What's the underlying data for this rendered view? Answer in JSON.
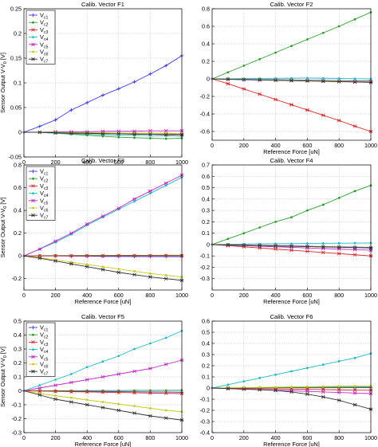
{
  "chart_data": [
    {
      "type": "line",
      "title": "Calib. Vector F1",
      "xlabel": "Reference Force [uN]",
      "ylabel": "Sensor Output V-V",
      "ylabel_sub": "0",
      "ylabel_unit": " [V]",
      "x": [
        0,
        100,
        200,
        300,
        400,
        500,
        600,
        700,
        800,
        900,
        1000
      ],
      "xlim": [
        0,
        1000
      ],
      "xticks": [
        0,
        200,
        400,
        600,
        800,
        1000
      ],
      "ylim": [
        -0.05,
        0.25
      ],
      "yticks": [
        -0.05,
        0,
        0.05,
        0.1,
        0.15,
        0.2,
        0.25
      ],
      "grid": true,
      "legend_loc": "top-left",
      "series": [
        {
          "name": "c1",
          "color": "#3b3bd6",
          "marker": "plus",
          "values": [
            0,
            0.012,
            0.025,
            0.045,
            0.06,
            0.075,
            0.088,
            0.102,
            0.118,
            0.135,
            0.155
          ]
        },
        {
          "name": "c2",
          "color": "#2e9a2e",
          "marker": "dot",
          "values": [
            0,
            0,
            -0.002,
            -0.004,
            -0.006,
            -0.008,
            -0.01,
            -0.011,
            -0.012,
            -0.013,
            -0.012
          ]
        },
        {
          "name": "c3",
          "color": "#d62828",
          "marker": "star",
          "values": [
            0,
            0,
            -0.001,
            -0.001,
            -0.002,
            -0.002,
            -0.003,
            -0.003,
            -0.004,
            -0.004,
            -0.004
          ]
        },
        {
          "name": "c4",
          "color": "#22b8c0",
          "marker": "dot",
          "values": [
            0,
            0,
            -0.002,
            -0.003,
            -0.004,
            -0.005,
            -0.006,
            -0.006,
            -0.007,
            -0.007,
            -0.008
          ]
        },
        {
          "name": "c5",
          "color": "#c02cc0",
          "marker": "star",
          "values": [
            0,
            0,
            0.001,
            0.001,
            0.001,
            0.002,
            0.002,
            0.002,
            0.003,
            0.003,
            0.003
          ]
        },
        {
          "name": "c6",
          "color": "#c8c81e",
          "marker": "dot",
          "values": [
            0,
            0,
            0,
            -0.001,
            -0.001,
            -0.001,
            -0.002,
            -0.002,
            -0.002,
            -0.002,
            -0.003
          ]
        },
        {
          "name": "c7",
          "color": "#333333",
          "marker": "star",
          "values": [
            0,
            0,
            -0.001,
            -0.002,
            -0.002,
            -0.003,
            -0.003,
            -0.004,
            -0.004,
            -0.005,
            -0.005
          ]
        }
      ]
    },
    {
      "type": "line",
      "title": "Calib. Vector F2",
      "xlabel": "Reference Force [uN]",
      "ylabel": "",
      "x": [
        0,
        100,
        200,
        300,
        400,
        500,
        600,
        700,
        800,
        900,
        1000
      ],
      "xlim": [
        0,
        1000
      ],
      "xticks": [
        0,
        200,
        400,
        600,
        800,
        1000
      ],
      "xtick_labels": [
        "0",
        "200",
        "400",
        "600",
        "800",
        "1000"
      ],
      "ylim": [
        -0.7,
        0.8
      ],
      "yticks": [
        -0.6,
        -0.4,
        -0.2,
        0,
        0.2,
        0.4,
        0.6,
        0.8
      ],
      "grid": true,
      "series": [
        {
          "color": "#3b3bd6",
          "marker": "plus",
          "values": [
            0,
            0,
            -0.005,
            -0.008,
            -0.01,
            -0.012,
            -0.015,
            -0.018,
            -0.02,
            -0.022,
            -0.025
          ]
        },
        {
          "color": "#2e9a2e",
          "marker": "dot",
          "values": [
            0,
            0.075,
            0.15,
            0.225,
            0.3,
            0.375,
            0.45,
            0.525,
            0.6,
            0.68,
            0.76
          ]
        },
        {
          "color": "#d62828",
          "marker": "star",
          "values": [
            0,
            -0.055,
            -0.115,
            -0.175,
            -0.235,
            -0.295,
            -0.355,
            -0.415,
            -0.475,
            -0.54,
            -0.6
          ]
        },
        {
          "color": "#22b8c0",
          "marker": "dot",
          "values": [
            0,
            0.002,
            0.003,
            0.005,
            0.006,
            0.008,
            0.01,
            0.008,
            0.005,
            0.002,
            0
          ]
        },
        {
          "color": "#c02cc0",
          "marker": "star",
          "values": [
            0,
            -0.005,
            -0.01,
            -0.012,
            -0.015,
            -0.018,
            -0.02,
            -0.022,
            -0.025,
            -0.028,
            -0.03
          ]
        },
        {
          "color": "#c8c81e",
          "marker": "dot",
          "values": [
            0,
            -0.003,
            -0.006,
            -0.01,
            -0.013,
            -0.016,
            -0.02,
            -0.023,
            -0.026,
            -0.03,
            -0.033
          ]
        },
        {
          "color": "#333333",
          "marker": "star",
          "values": [
            0,
            -0.004,
            -0.008,
            -0.012,
            -0.016,
            -0.02,
            -0.024,
            -0.028,
            -0.032,
            -0.036,
            -0.04
          ]
        }
      ]
    },
    {
      "type": "line",
      "title": "Calib. Vector F3",
      "xlabel": "Reference Force [uN]",
      "ylabel": "Sensor Output V-V",
      "ylabel_sub": "0",
      "ylabel_unit": " [V]",
      "x": [
        0,
        100,
        200,
        300,
        400,
        500,
        600,
        700,
        800,
        900,
        1000
      ],
      "xlim": [
        0,
        1000
      ],
      "xticks": [
        0,
        200,
        400,
        600,
        800,
        1000
      ],
      "ylim": [
        -0.3,
        0.8
      ],
      "yticks": [
        -0.2,
        0,
        0.2,
        0.4,
        0.6,
        0.8
      ],
      "grid": true,
      "legend_loc": "top-left",
      "series": [
        {
          "name": "c1",
          "color": "#3b3bd6",
          "marker": "plus",
          "values": [
            0,
            0,
            0,
            -0.002,
            -0.003,
            -0.004,
            -0.005,
            -0.005,
            -0.006,
            -0.006,
            -0.007
          ]
        },
        {
          "name": "c2",
          "color": "#2e9a2e",
          "marker": "dot",
          "values": [
            0,
            0.002,
            0.003,
            0.003,
            0.004,
            0.004,
            0.005,
            0.005,
            0.005,
            0.006,
            0.006
          ]
        },
        {
          "name": "c3",
          "color": "#d62828",
          "marker": "star",
          "values": [
            0,
            0,
            0.001,
            0.001,
            0.001,
            0.001,
            0.002,
            0.002,
            0.002,
            0.002,
            0.002
          ]
        },
        {
          "name": "c4",
          "color": "#22b8c0",
          "marker": "dot",
          "values": [
            0,
            0.06,
            0.12,
            0.19,
            0.27,
            0.34,
            0.41,
            0.48,
            0.55,
            0.62,
            0.69
          ]
        },
        {
          "name": "c5",
          "color": "#c02cc0",
          "marker": "star",
          "values": [
            0,
            0.06,
            0.13,
            0.2,
            0.28,
            0.35,
            0.42,
            0.5,
            0.57,
            0.64,
            0.71
          ]
        },
        {
          "name": "c6",
          "color": "#c8c81e",
          "marker": "dot",
          "values": [
            0,
            -0.015,
            -0.035,
            -0.055,
            -0.075,
            -0.095,
            -0.115,
            -0.135,
            -0.155,
            -0.17,
            -0.185
          ]
        },
        {
          "name": "c7",
          "color": "#333333",
          "marker": "star",
          "values": [
            0,
            -0.02,
            -0.045,
            -0.07,
            -0.095,
            -0.12,
            -0.145,
            -0.165,
            -0.185,
            -0.2,
            -0.215
          ]
        }
      ]
    },
    {
      "type": "line",
      "title": "Calib. Vector F4",
      "xlabel": "Reference Force [uN]",
      "ylabel": "",
      "x": [
        0,
        100,
        200,
        300,
        400,
        500,
        600,
        700,
        800,
        900,
        1000
      ],
      "xlim": [
        0,
        1000
      ],
      "xticks": [
        0,
        200,
        400,
        600,
        800,
        1000
      ],
      "xtick_labels": [
        "0",
        "200",
        "400",
        "600",
        "800",
        "1000"
      ],
      "ylim": [
        -0.4,
        0.7
      ],
      "yticks": [
        -0.3,
        -0.2,
        -0.1,
        0,
        0.1,
        0.2,
        0.3,
        0.4,
        0.5,
        0.6,
        0.7
      ],
      "grid": true,
      "series": [
        {
          "color": "#3b3bd6",
          "marker": "plus",
          "values": [
            0,
            -0.002,
            -0.005,
            -0.008,
            -0.01,
            -0.012,
            -0.015,
            -0.018,
            -0.02,
            -0.022,
            -0.025
          ]
        },
        {
          "color": "#2e9a2e",
          "marker": "dot",
          "values": [
            0,
            0.05,
            0.1,
            0.15,
            0.2,
            0.24,
            0.3,
            0.35,
            0.41,
            0.47,
            0.52
          ]
        },
        {
          "color": "#d62828",
          "marker": "star",
          "values": [
            0,
            -0.01,
            -0.02,
            -0.03,
            -0.04,
            -0.05,
            -0.06,
            -0.07,
            -0.08,
            -0.09,
            -0.1
          ]
        },
        {
          "color": "#22b8c0",
          "marker": "dot",
          "values": [
            0,
            0.002,
            0.004,
            0.006,
            0.007,
            0.008,
            0.01,
            0.011,
            0.012,
            0.013,
            0.014
          ]
        },
        {
          "color": "#c02cc0",
          "marker": "star",
          "values": [
            0,
            -0.005,
            -0.01,
            -0.015,
            -0.02,
            -0.025,
            -0.03,
            -0.035,
            -0.04,
            -0.045,
            -0.05
          ]
        },
        {
          "color": "#c8c81e",
          "marker": "dot",
          "values": [
            0,
            -0.003,
            -0.006,
            -0.01,
            -0.012,
            -0.015,
            -0.018,
            -0.02,
            -0.022,
            -0.025,
            -0.028
          ]
        },
        {
          "color": "#333333",
          "marker": "star",
          "values": [
            0,
            -0.003,
            -0.006,
            -0.009,
            -0.012,
            -0.015,
            -0.018,
            -0.021,
            -0.024,
            -0.027,
            -0.03
          ]
        }
      ]
    },
    {
      "type": "line",
      "title": "Calib. Vector F5",
      "xlabel": "Reference Force [uN]",
      "ylabel": "Sensor Output V-V",
      "ylabel_sub": "0",
      "ylabel_unit": " [V]",
      "x": [
        0,
        100,
        200,
        300,
        400,
        500,
        600,
        700,
        800,
        900,
        1000
      ],
      "xlim": [
        0,
        1000
      ],
      "xticks": [
        0,
        200,
        400,
        600,
        800,
        1000
      ],
      "ylim": [
        -0.3,
        0.5
      ],
      "yticks": [
        -0.3,
        -0.2,
        -0.1,
        0,
        0.1,
        0.2,
        0.3,
        0.4,
        0.5
      ],
      "grid": true,
      "legend_loc": "top-left",
      "series": [
        {
          "name": "c1",
          "color": "#3b3bd6",
          "marker": "plus",
          "values": [
            0,
            0,
            -0.002,
            -0.003,
            -0.004,
            -0.005,
            -0.006,
            -0.007,
            -0.008,
            -0.009,
            -0.01
          ]
        },
        {
          "name": "c2",
          "color": "#2e9a2e",
          "marker": "dot",
          "values": [
            0,
            0,
            0.001,
            0.001,
            0.002,
            0.002,
            0.002,
            0.003,
            0.003,
            0.003,
            0.004
          ]
        },
        {
          "name": "c3",
          "color": "#d62828",
          "marker": "star",
          "values": [
            0,
            -0.002,
            -0.004,
            -0.006,
            -0.008,
            -0.01,
            -0.012,
            -0.014,
            -0.016,
            -0.018,
            -0.02
          ]
        },
        {
          "name": "c4",
          "color": "#22b8c0",
          "marker": "dot",
          "values": [
            0,
            0.04,
            0.08,
            0.12,
            0.17,
            0.21,
            0.25,
            0.3,
            0.34,
            0.38,
            0.43
          ]
        },
        {
          "name": "c5",
          "color": "#c02cc0",
          "marker": "star",
          "values": [
            0,
            0.02,
            0.04,
            0.06,
            0.08,
            0.1,
            0.12,
            0.14,
            0.16,
            0.19,
            0.22
          ]
        },
        {
          "name": "c6",
          "color": "#c8c81e",
          "marker": "dot",
          "values": [
            0,
            -0.02,
            -0.035,
            -0.05,
            -0.065,
            -0.08,
            -0.095,
            -0.11,
            -0.125,
            -0.14,
            -0.15
          ]
        },
        {
          "name": "c7",
          "color": "#333333",
          "marker": "star",
          "values": [
            0,
            -0.03,
            -0.06,
            -0.08,
            -0.1,
            -0.12,
            -0.14,
            -0.16,
            -0.18,
            -0.195,
            -0.21
          ]
        }
      ]
    },
    {
      "type": "line",
      "title": "Calib. Vector F6",
      "xlabel": "Reference Force [uN]",
      "ylabel": "",
      "x": [
        0,
        100,
        200,
        300,
        400,
        500,
        600,
        700,
        800,
        900,
        1000
      ],
      "xlim": [
        0,
        1000
      ],
      "xticks": [
        0,
        200,
        400,
        600,
        800,
        1000
      ],
      "xtick_labels": [
        "0",
        "200",
        "400",
        "600",
        "800",
        "1000"
      ],
      "ylim": [
        -0.4,
        0.6
      ],
      "yticks": [
        -0.4,
        -0.3,
        -0.2,
        -0.1,
        0,
        0.1,
        0.2,
        0.3,
        0.4,
        0.5,
        0.6
      ],
      "grid": true,
      "series": [
        {
          "color": "#3b3bd6",
          "marker": "plus",
          "values": [
            0,
            0,
            0.001,
            0.001,
            0.002,
            0.002,
            0.002,
            0.003,
            0.003,
            0.003,
            0.003
          ]
        },
        {
          "color": "#2e9a2e",
          "marker": "dot",
          "values": [
            0,
            0.001,
            0.002,
            0.003,
            0.004,
            0.005,
            0.006,
            0.007,
            0.008,
            0.009,
            0.01
          ]
        },
        {
          "color": "#d62828",
          "marker": "star",
          "values": [
            0,
            -0.002,
            -0.004,
            -0.006,
            -0.008,
            -0.01,
            -0.012,
            -0.014,
            -0.016,
            -0.018,
            -0.02
          ]
        },
        {
          "color": "#22b8c0",
          "marker": "dot",
          "values": [
            0,
            0.03,
            0.06,
            0.09,
            0.12,
            0.15,
            0.18,
            0.21,
            0.24,
            0.27,
            0.31
          ]
        },
        {
          "color": "#c02cc0",
          "marker": "star",
          "values": [
            0,
            -0.005,
            -0.01,
            -0.015,
            -0.02,
            -0.025,
            -0.03,
            -0.035,
            -0.04,
            -0.045,
            -0.05
          ]
        },
        {
          "color": "#c8c81e",
          "marker": "dot",
          "values": [
            0,
            0.002,
            0.004,
            0.006,
            0.008,
            0.01,
            0.012,
            0.014,
            0.016,
            0.018,
            0.02
          ]
        },
        {
          "color": "#333333",
          "marker": "star",
          "values": [
            0,
            -0.005,
            -0.01,
            -0.015,
            -0.022,
            -0.035,
            -0.055,
            -0.08,
            -0.11,
            -0.15,
            -0.19
          ]
        }
      ]
    }
  ]
}
